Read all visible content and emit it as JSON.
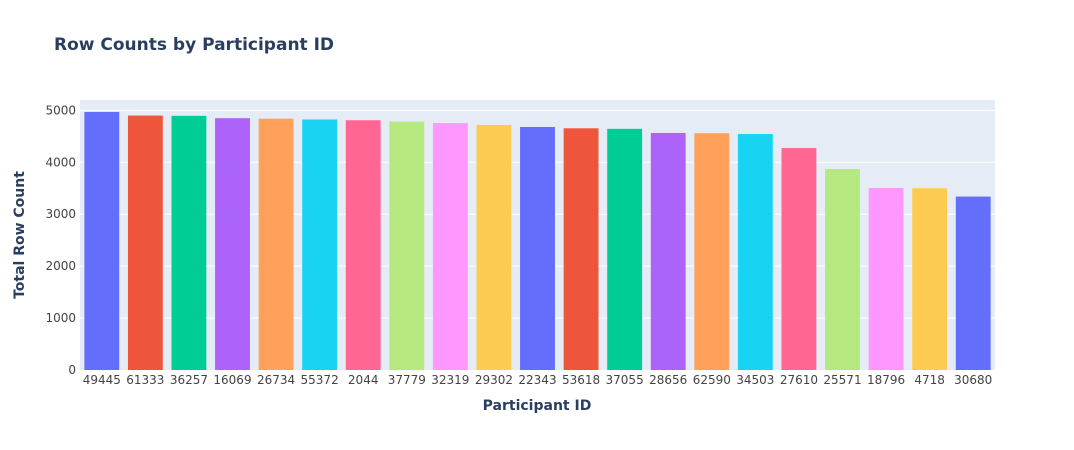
{
  "chart_data": {
    "type": "bar",
    "title": "Row Counts by Participant ID",
    "xlabel": "Participant ID",
    "ylabel": "Total Row Count",
    "ylim": [
      0,
      5200
    ],
    "yticks": [
      0,
      1000,
      2000,
      3000,
      4000,
      5000
    ],
    "grid": true,
    "legend": "none",
    "categories": [
      "49445",
      "61333",
      "36257",
      "16069",
      "26734",
      "55372",
      "2044",
      "37779",
      "32319",
      "29302",
      "22343",
      "53618",
      "37055",
      "28656",
      "62590",
      "34503",
      "27610",
      "25571",
      "18796",
      "4718",
      "30680"
    ],
    "values": [
      4970,
      4900,
      4895,
      4850,
      4840,
      4825,
      4810,
      4785,
      4755,
      4720,
      4680,
      4655,
      4645,
      4565,
      4560,
      4545,
      4275,
      3870,
      3505,
      3500,
      3340
    ],
    "colors": [
      "#636efa",
      "#ef553b",
      "#00cc96",
      "#ab63fa",
      "#ffa15a",
      "#19d3f3",
      "#ff6692",
      "#b6e880",
      "#ff97ff",
      "#fecb52",
      "#636efa",
      "#ef553b",
      "#00cc96",
      "#ab63fa",
      "#ffa15a",
      "#19d3f3",
      "#ff6692",
      "#b6e880",
      "#ff97ff",
      "#fecb52",
      "#636efa"
    ],
    "plot_background": "#e5ecf6"
  }
}
